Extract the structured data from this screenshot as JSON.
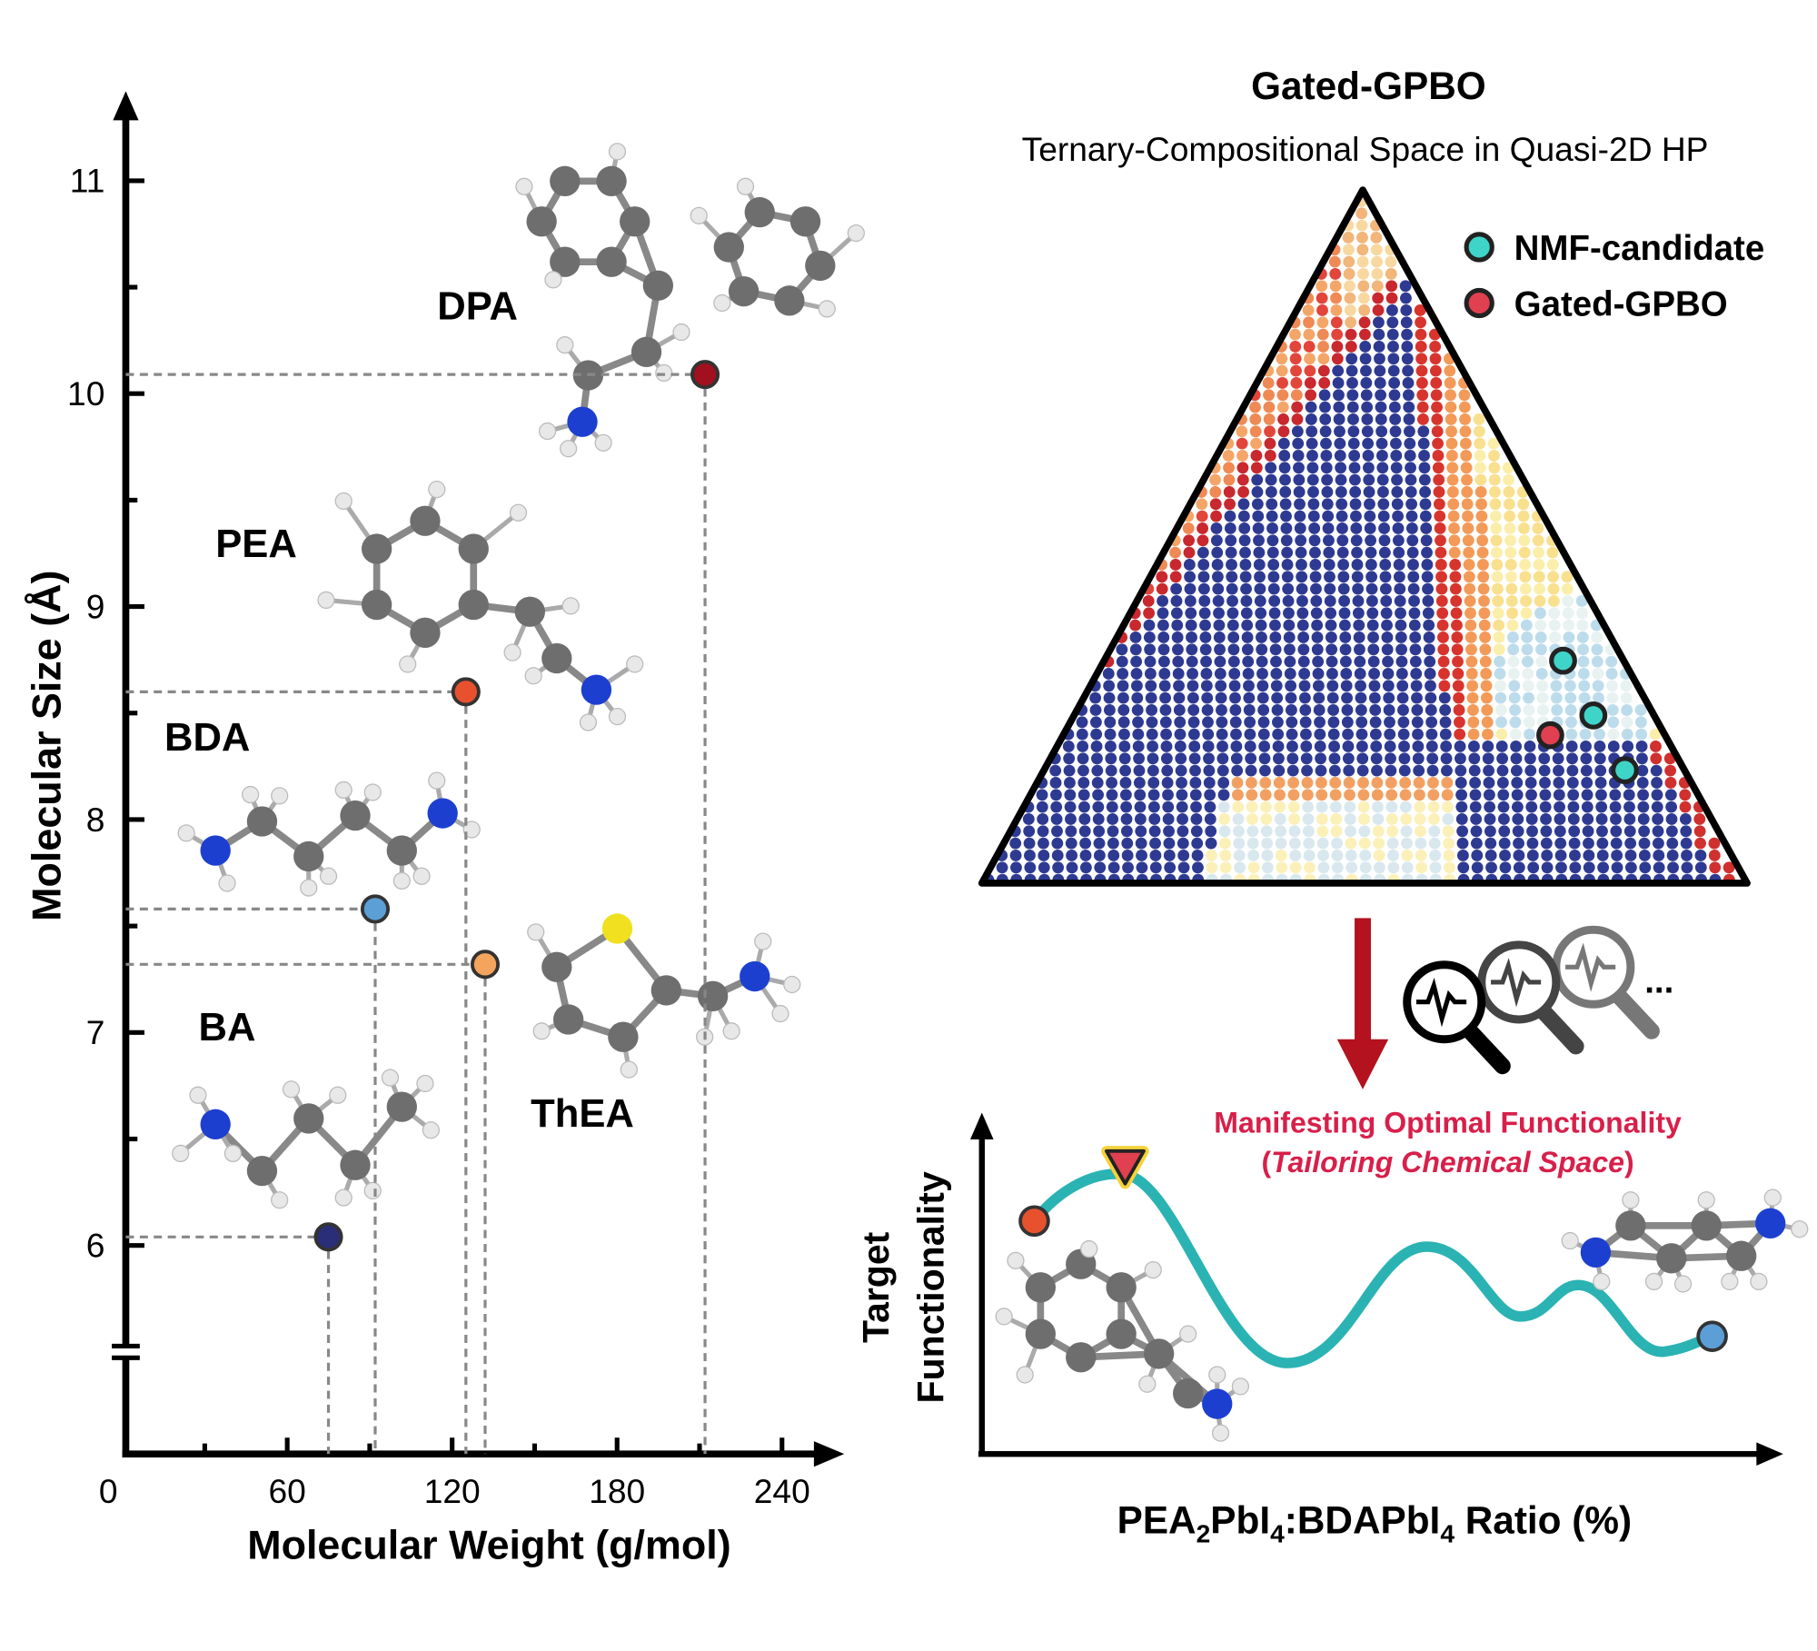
{
  "chart_data": {
    "type": "scatter",
    "xlabel": "Molecular Weight (g/mol)",
    "ylabel": "Molecular Size (Å)",
    "labels": [
      "BA",
      "BDA",
      "PEA",
      "ThEA",
      "DPA"
    ],
    "x": [
      75,
      92,
      125,
      132,
      212
    ],
    "values": [
      6.04,
      7.58,
      8.6,
      7.32,
      10.09
    ],
    "colors": [
      "#2a2e78",
      "#5b9fd6",
      "#e8512e",
      "#f4a45c",
      "#a0101e"
    ],
    "xlim": [
      0,
      255
    ],
    "xticks": [
      0,
      60,
      120,
      180,
      240
    ],
    "xminor": [
      30,
      90,
      150,
      210
    ],
    "ylim": [
      5.5,
      11.3
    ],
    "yticks": [
      6,
      7,
      8,
      9,
      10,
      11
    ],
    "yminor": [
      6.5,
      7.5,
      8.5,
      9.5,
      10.5
    ],
    "axis_break": true
  },
  "diagram": {
    "title": "Gated-GPBO",
    "subtitle": "Ternary-Compositional Space in Quasi-2D HP",
    "legend": [
      {
        "name": "NMF-candidate",
        "color": "#3fd4c8"
      },
      {
        "name": "Gated-GPBO",
        "color": "#e0404f"
      }
    ],
    "annotation": {
      "line1": "Manifesting Optimal Functionality",
      "line2": [
        "(",
        "Tailoring Chemical Space",
        ")"
      ]
    },
    "ylabel": [
      "Target",
      "Functionality"
    ],
    "xlabel": [
      "PEA",
      "2",
      "PbI",
      "4",
      ":BDAPbI",
      "4",
      " Ratio (%)"
    ],
    "ellipsis": "..."
  }
}
